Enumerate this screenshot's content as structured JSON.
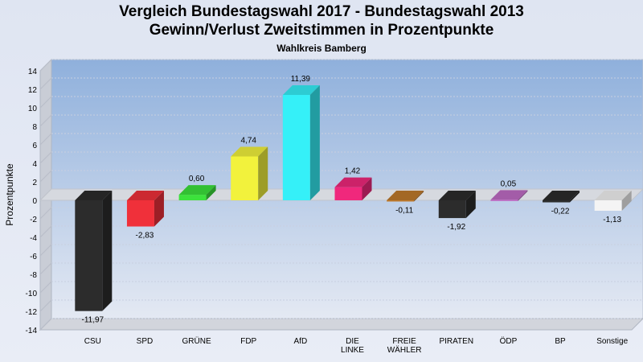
{
  "chart_data": {
    "type": "bar",
    "title": "Vergleich Bundestagswahl 2017 - Bundestagswahl 2013",
    "subtitle": "Gewinn/Verlust Zweitstimmen in Prozentpunkte",
    "caption": "Wahlkreis Bamberg",
    "ylabel": "Prozentpunkte",
    "xlabel": "",
    "ylim": [
      -14,
      14
    ],
    "yticks": [
      14,
      12,
      10,
      8,
      6,
      4,
      2,
      0,
      -2,
      -4,
      -6,
      -8,
      -10,
      -12,
      -14
    ],
    "grid": true,
    "categories": [
      "CSU",
      "SPD",
      "GRÜNE",
      "FDP",
      "AfD",
      "DIE LINKE",
      "FREIE WÄHLER",
      "PIRATEN",
      "ÖDP",
      "BP",
      "Sonstige"
    ],
    "values": [
      -11.97,
      -2.83,
      0.6,
      4.74,
      11.39,
      1.42,
      -0.11,
      -1.92,
      0.05,
      -0.22,
      -1.13
    ],
    "value_labels": [
      "-11,97",
      "-2,83",
      "0,60",
      "4,74",
      "11,39",
      "1,42",
      "-0,11",
      "-1,92",
      "0,05",
      "-0,22",
      "-1,13"
    ],
    "colors": [
      "#2c2c2c",
      "#f0303a",
      "#3ce23c",
      "#f2f23c",
      "#35f0f8",
      "#f0287c",
      "#c07a2c",
      "#2c2c2c",
      "#c06cc6",
      "#2c2c2c",
      "#f4f4f4"
    ]
  }
}
